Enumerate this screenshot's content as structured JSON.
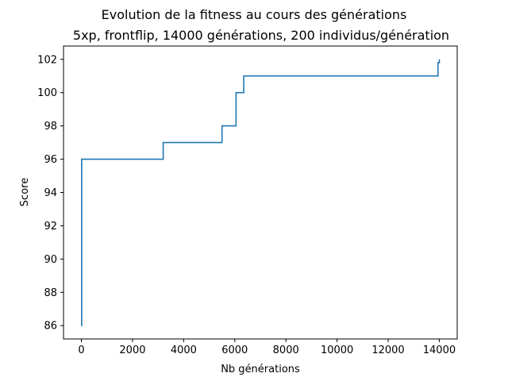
{
  "chart_data": {
    "type": "line",
    "title": "Evolution de la fitness au cours des générations",
    "subtitle": "5xp, frontflip, 14000 générations, 200 individus/génération",
    "xlabel": "Nb générations",
    "ylabel": "Score",
    "xlim": [
      -700,
      14700
    ],
    "ylim": [
      85.2,
      102.8
    ],
    "x_ticks": [
      0,
      2000,
      4000,
      6000,
      8000,
      10000,
      12000,
      14000
    ],
    "y_ticks": [
      86,
      88,
      90,
      92,
      94,
      96,
      98,
      100,
      102
    ],
    "grid": false,
    "line_color": "#1f77b4",
    "series": [
      {
        "step": "post",
        "x": [
          0,
          10,
          3200,
          5500,
          6050,
          6350,
          13950,
          14000
        ],
        "y": [
          86,
          96,
          97,
          98,
          100,
          101,
          101.8,
          102
        ]
      }
    ]
  }
}
